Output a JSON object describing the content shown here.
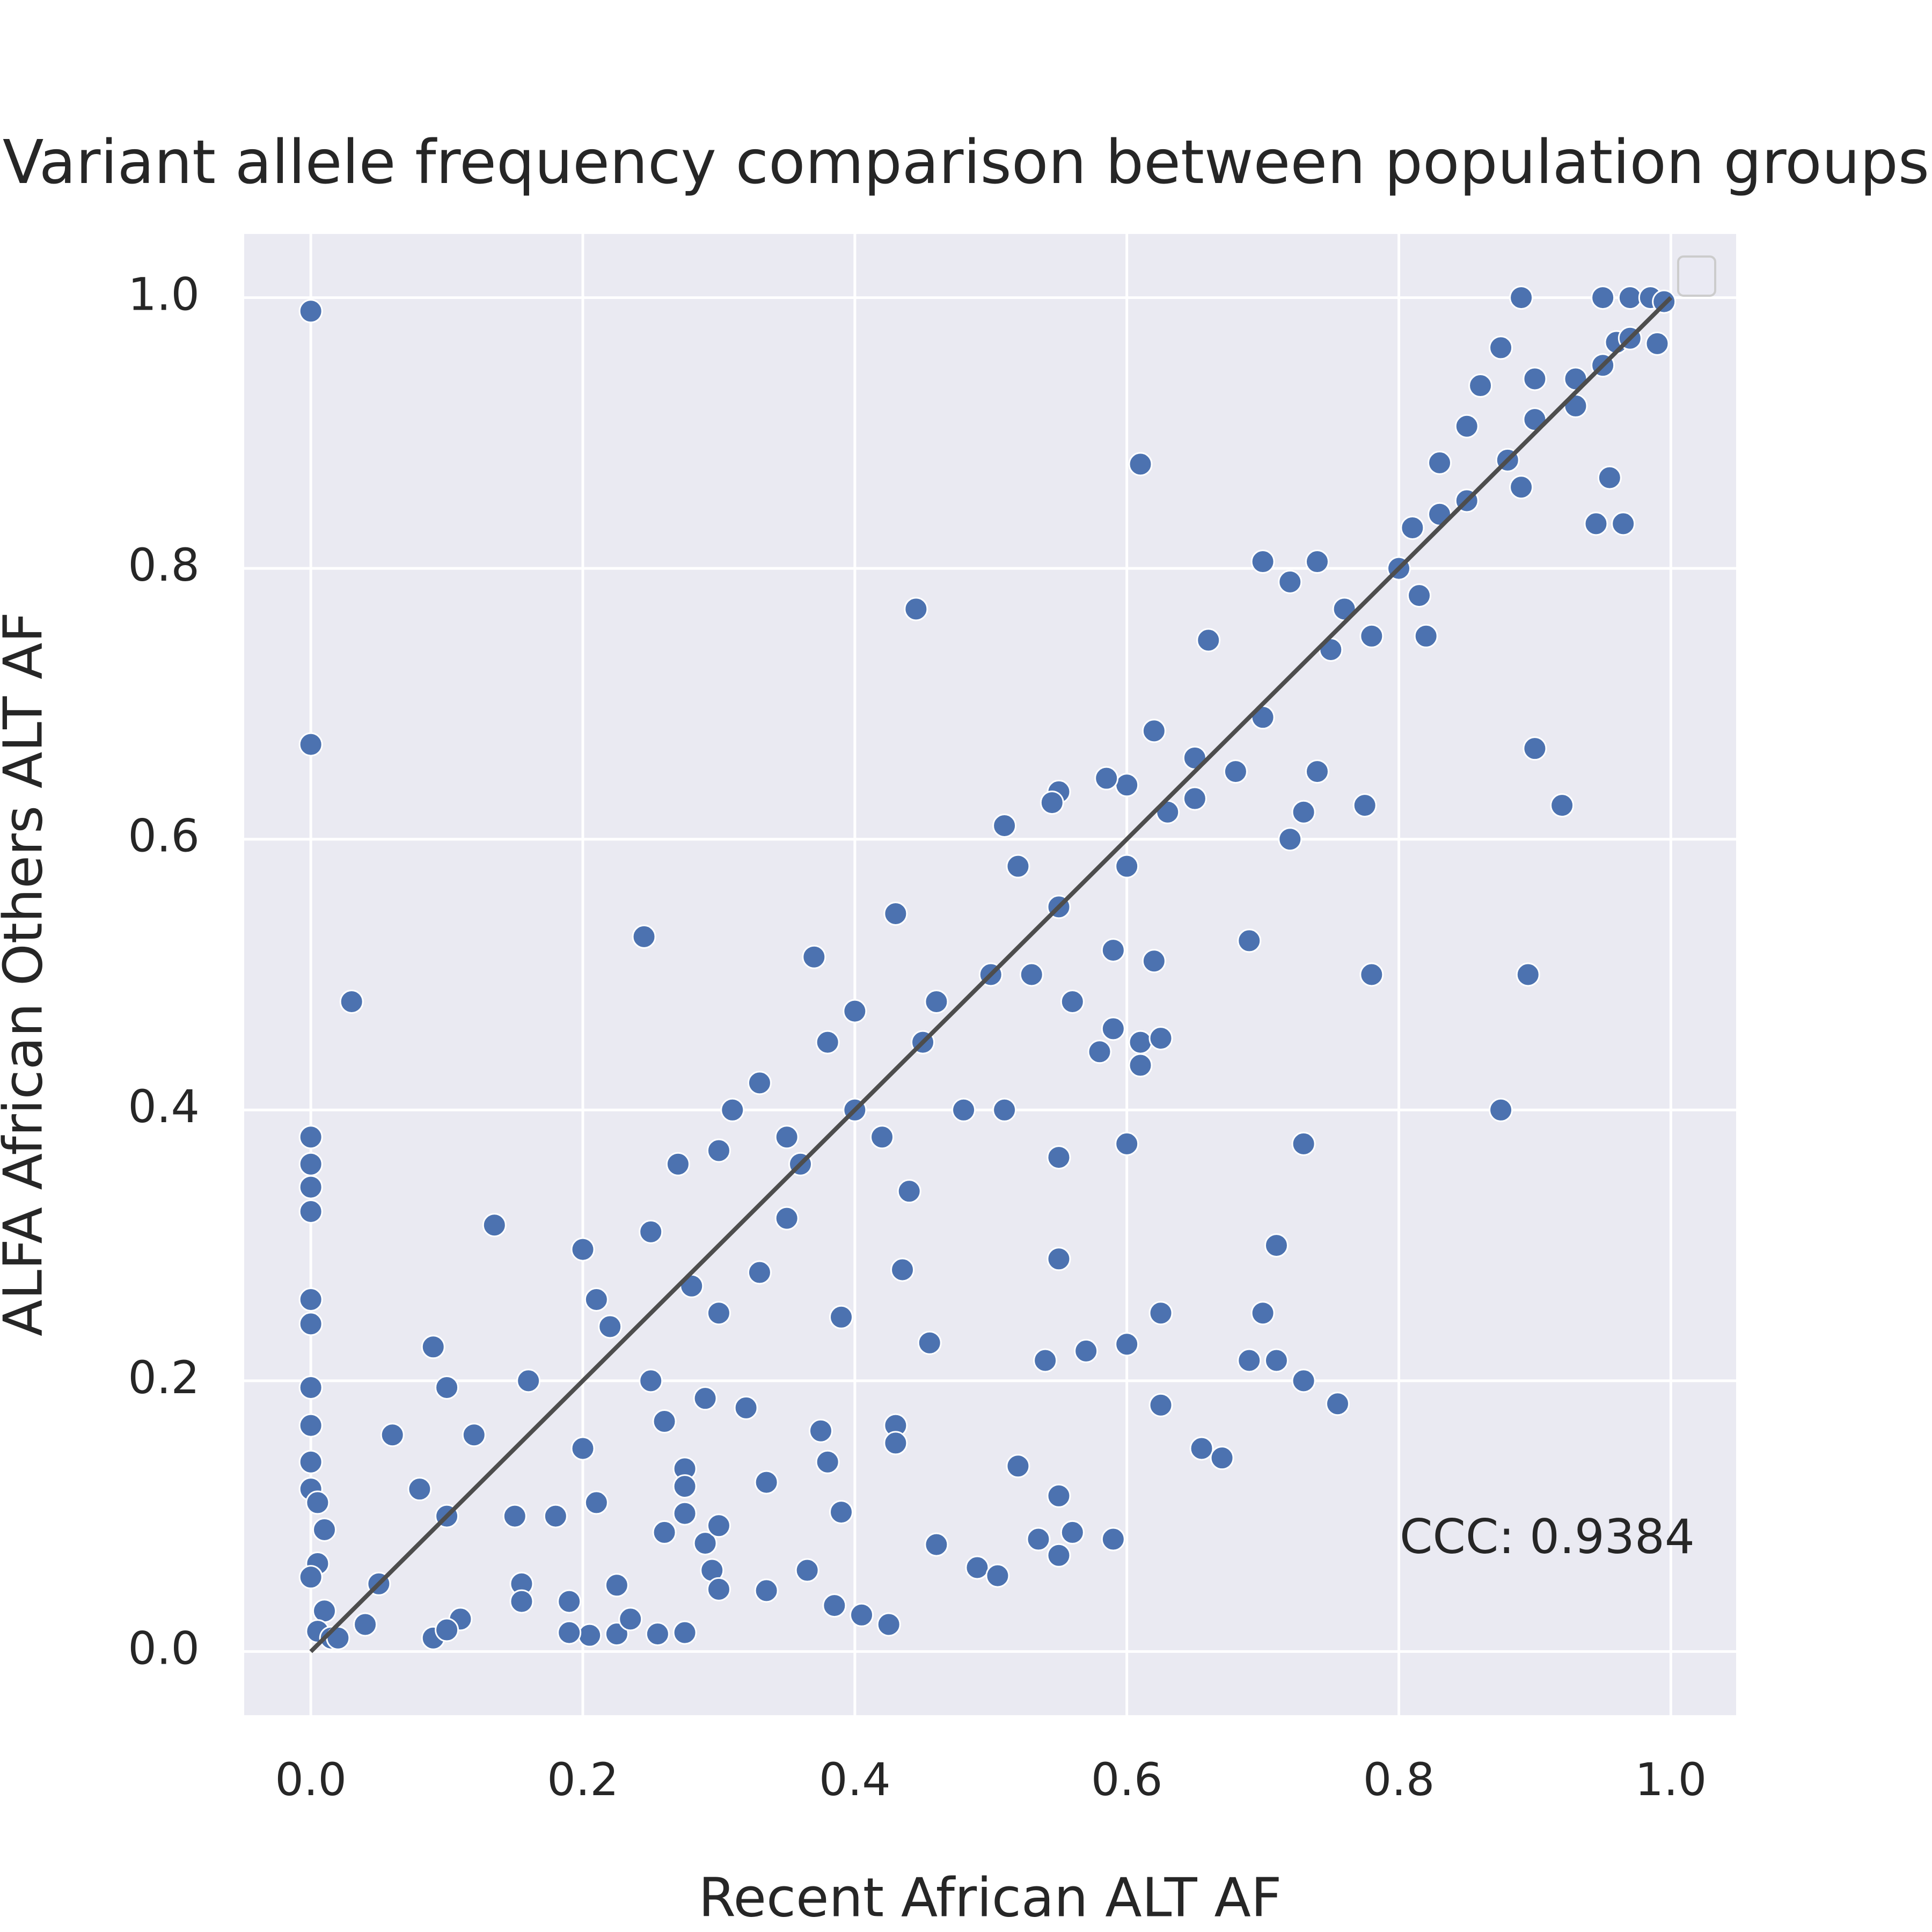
{
  "chart_data": {
    "type": "scatter",
    "title": "Variant allele frequency comparison between population groups",
    "x_label": "Recent African ALT AF",
    "y_label": "ALFA African Others ALT AF",
    "annotation": "CCC: 0.9384",
    "xlim": [
      -0.049,
      1.048
    ],
    "ylim": [
      -0.047,
      1.047
    ],
    "xticks": [
      {
        "value": 0,
        "label": "0.0"
      },
      0.2,
      0.4,
      0.6,
      0.8,
      {
        "value": 1,
        "label": "1.0"
      }
    ],
    "yticks": [
      {
        "value": 0,
        "label": "0.0"
      },
      0.2,
      0.4,
      0.6,
      0.8,
      {
        "value": 1,
        "label": "1.0"
      }
    ],
    "grid": true,
    "identity_line": {
      "x": [
        0,
        1
      ],
      "y": [
        0,
        1
      ],
      "color": "#4d4d4d"
    },
    "series": [
      {
        "color": "#4c72b0",
        "x": [
          0,
          0,
          0.03,
          0,
          0,
          0,
          0,
          0,
          0,
          0,
          0,
          0,
          0,
          0.005,
          0.01,
          0.005,
          0,
          0.01,
          0.005,
          0.015,
          0.61,
          0.445,
          0.245,
          0.135,
          0.09,
          0.1,
          0.9,
          0.92,
          0.895,
          0.875,
          0.78,
          0.775,
          0.69,
          0.73,
          0.71,
          0.7,
          0.625,
          0.6,
          0.55,
          0.55,
          0.57,
          0.6,
          0.54,
          0.69,
          0.71,
          0.73,
          0.755,
          0.625,
          0.655,
          0.67,
          0.52,
          0.55,
          0.535,
          0.56,
          0.59,
          0.55,
          0.49,
          0.505,
          0.46,
          0.43,
          0.43,
          0.455,
          0.435,
          0.39,
          0.375,
          0.38,
          0.39,
          0.335,
          0.32,
          0.29,
          0.275,
          0.275,
          0.275,
          0.26,
          0.29,
          0.3,
          0.295,
          0.3,
          0.335,
          0.365,
          0.385,
          0.405,
          0.425,
          0.275,
          0.255,
          0.225,
          0.205,
          0.19,
          0.19,
          0.225,
          0.235,
          0.155,
          0.155,
          0.11,
          0.09,
          0.1,
          0.945,
          0.965,
          0.955,
          0.89,
          0.95,
          0.97,
          0.985,
          0.995,
          0.99,
          0.96,
          0.875,
          0.86,
          0.9,
          0.93,
          0.85,
          0.88,
          0.89,
          0.83,
          0.81,
          0.8,
          0.82,
          0.815,
          0.78,
          0.72,
          0.74,
          0.7,
          0.66,
          0.65,
          0.62,
          0.6,
          0.585,
          0.55,
          0.51,
          0.545,
          0.52,
          0.43,
          0.37,
          0.4,
          0.31,
          0.33,
          0.27,
          0.2,
          0.21,
          0.25,
          0.3,
          0.35,
          0.4,
          0.45,
          0.5,
          0.55,
          0.6,
          0.65,
          0.7,
          0.75,
          0.85,
          0.95,
          0.48,
          0.51,
          0.58,
          0.59,
          0.61,
          0.625,
          0.61,
          0.62,
          0.59,
          0.33,
          0.3,
          0.25,
          0.2,
          0.15,
          0.1,
          0.06,
          0.05,
          0.04,
          0.02,
          0.35,
          0.42,
          0.44,
          0.38,
          0.46,
          0.53,
          0.56,
          0.63,
          0.68,
          0.72,
          0.74,
          0.73,
          0.76,
          0.83,
          0.9,
          0.93,
          0.97,
          0.16,
          0.12,
          0.08,
          0.22,
          0.28,
          0.36,
          0.26,
          0.21,
          0.18
        ],
        "values": [
          0.99,
          0.67,
          0.48,
          0.38,
          0.36,
          0.343,
          0.325,
          0.26,
          0.242,
          0.195,
          0.167,
          0.14,
          0.12,
          0.11,
          0.09,
          0.065,
          0.055,
          0.03,
          0.015,
          0.01,
          0.877,
          0.77,
          0.528,
          0.315,
          0.225,
          0.195,
          0.667,
          0.625,
          0.5,
          0.4,
          0.5,
          0.625,
          0.525,
          0.375,
          0.3,
          0.25,
          0.25,
          0.375,
          0.365,
          0.29,
          0.222,
          0.227,
          0.215,
          0.215,
          0.215,
          0.2,
          0.183,
          0.182,
          0.15,
          0.143,
          0.137,
          0.115,
          0.083,
          0.088,
          0.083,
          0.071,
          0.062,
          0.056,
          0.079,
          0.167,
          0.154,
          0.228,
          0.282,
          0.247,
          0.163,
          0.14,
          0.103,
          0.125,
          0.18,
          0.187,
          0.135,
          0.122,
          0.102,
          0.088,
          0.08,
          0.093,
          0.06,
          0.046,
          0.045,
          0.06,
          0.034,
          0.027,
          0.02,
          0.014,
          0.013,
          0.013,
          0.012,
          0.014,
          0.037,
          0.049,
          0.024,
          0.05,
          0.037,
          0.024,
          0.01,
          0.016,
          0.833,
          0.833,
          0.867,
          1.0,
          1.0,
          1.0,
          1.0,
          0.997,
          0.966,
          0.967,
          0.963,
          0.935,
          0.94,
          0.94,
          0.905,
          0.88,
          0.86,
          0.878,
          0.83,
          0.8,
          0.75,
          0.78,
          0.75,
          0.79,
          0.805,
          0.805,
          0.747,
          0.66,
          0.68,
          0.64,
          0.645,
          0.635,
          0.61,
          0.627,
          0.58,
          0.545,
          0.513,
          0.473,
          0.4,
          0.42,
          0.36,
          0.297,
          0.26,
          0.31,
          0.37,
          0.38,
          0.4,
          0.45,
          0.5,
          0.55,
          0.58,
          0.63,
          0.69,
          0.74,
          0.85,
          0.95,
          0.4,
          0.4,
          0.443,
          0.46,
          0.45,
          0.453,
          0.433,
          0.51,
          0.518,
          0.28,
          0.25,
          0.2,
          0.15,
          0.1,
          0.1,
          0.16,
          0.05,
          0.02,
          0.01,
          0.32,
          0.38,
          0.34,
          0.45,
          0.48,
          0.5,
          0.48,
          0.62,
          0.65,
          0.6,
          0.65,
          0.62,
          0.77,
          0.84,
          0.91,
          0.92,
          0.97,
          0.2,
          0.16,
          0.12,
          0.24,
          0.27,
          0.36,
          0.17,
          0.11,
          0.1
        ]
      }
    ]
  }
}
